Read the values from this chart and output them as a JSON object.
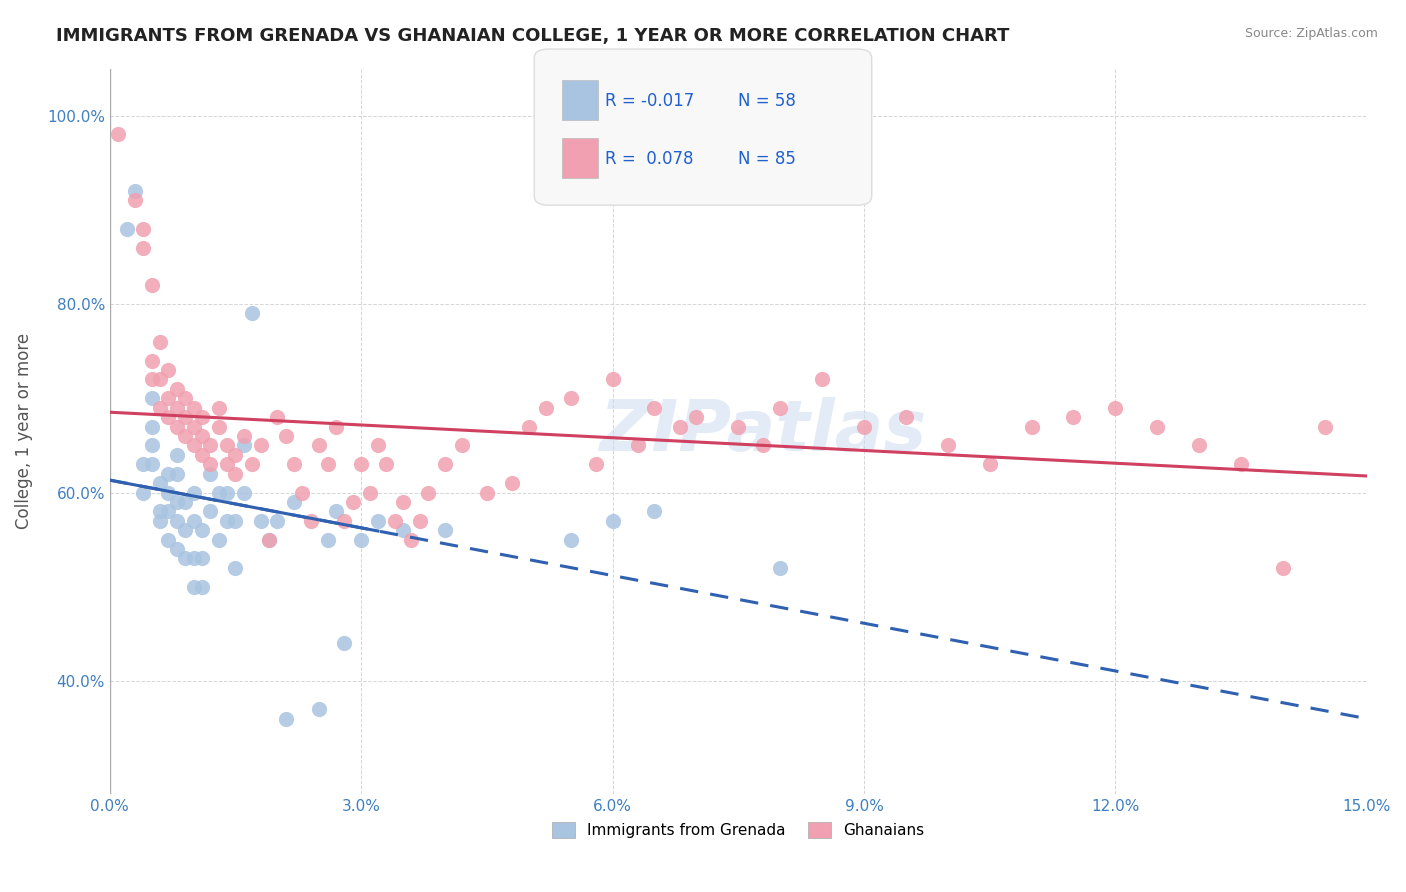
{
  "title": "IMMIGRANTS FROM GRENADA VS GHANAIAN COLLEGE, 1 YEAR OR MORE CORRELATION CHART",
  "source": "Source: ZipAtlas.com",
  "xlabel_ticks": [
    "0.0%",
    "3.0%",
    "6.0%",
    "9.0%",
    "12.0%",
    "15.0%"
  ],
  "xlabel_vals": [
    0.0,
    0.03,
    0.06,
    0.09,
    0.12,
    0.15
  ],
  "ylabel_ticks": [
    "40.0%",
    "60.0%",
    "80.0%",
    "100.0%"
  ],
  "ylabel_vals": [
    0.4,
    0.6,
    0.8,
    1.0
  ],
  "xlim": [
    0.0,
    0.15
  ],
  "ylim": [
    0.28,
    1.05
  ],
  "ylabel": "College, 1 year or more",
  "legend_blue_label": "Immigrants from Grenada",
  "legend_pink_label": "Ghanaians",
  "R_blue": -0.017,
  "N_blue": 58,
  "R_pink": 0.078,
  "N_pink": 85,
  "blue_color": "#a8c4e0",
  "pink_color": "#f0a0b0",
  "blue_line_color": "#3060b0",
  "pink_line_color": "#d04060",
  "watermark": "ZIPatlas",
  "blue_scatter_x": [
    0.002,
    0.003,
    0.004,
    0.004,
    0.005,
    0.005,
    0.005,
    0.005,
    0.006,
    0.006,
    0.006,
    0.007,
    0.007,
    0.007,
    0.007,
    0.008,
    0.008,
    0.008,
    0.008,
    0.008,
    0.009,
    0.009,
    0.009,
    0.01,
    0.01,
    0.01,
    0.01,
    0.011,
    0.011,
    0.011,
    0.012,
    0.012,
    0.013,
    0.013,
    0.014,
    0.014,
    0.015,
    0.015,
    0.016,
    0.016,
    0.017,
    0.018,
    0.019,
    0.02,
    0.021,
    0.022,
    0.025,
    0.026,
    0.027,
    0.028,
    0.03,
    0.032,
    0.035,
    0.04,
    0.055,
    0.06,
    0.065,
    0.08
  ],
  "blue_scatter_y": [
    0.88,
    0.92,
    0.6,
    0.63,
    0.63,
    0.65,
    0.67,
    0.7,
    0.57,
    0.58,
    0.61,
    0.55,
    0.58,
    0.6,
    0.62,
    0.54,
    0.57,
    0.59,
    0.62,
    0.64,
    0.53,
    0.56,
    0.59,
    0.5,
    0.53,
    0.57,
    0.6,
    0.5,
    0.53,
    0.56,
    0.58,
    0.62,
    0.55,
    0.6,
    0.57,
    0.6,
    0.52,
    0.57,
    0.6,
    0.65,
    0.79,
    0.57,
    0.55,
    0.57,
    0.36,
    0.59,
    0.37,
    0.55,
    0.58,
    0.44,
    0.55,
    0.57,
    0.56,
    0.56,
    0.55,
    0.57,
    0.58,
    0.52
  ],
  "pink_scatter_x": [
    0.001,
    0.003,
    0.004,
    0.004,
    0.005,
    0.005,
    0.005,
    0.006,
    0.006,
    0.006,
    0.007,
    0.007,
    0.007,
    0.008,
    0.008,
    0.008,
    0.009,
    0.009,
    0.009,
    0.01,
    0.01,
    0.01,
    0.011,
    0.011,
    0.011,
    0.012,
    0.012,
    0.013,
    0.013,
    0.014,
    0.014,
    0.015,
    0.015,
    0.016,
    0.017,
    0.018,
    0.019,
    0.02,
    0.021,
    0.022,
    0.023,
    0.024,
    0.025,
    0.026,
    0.027,
    0.028,
    0.029,
    0.03,
    0.031,
    0.032,
    0.033,
    0.034,
    0.035,
    0.036,
    0.037,
    0.038,
    0.04,
    0.042,
    0.045,
    0.048,
    0.05,
    0.052,
    0.055,
    0.058,
    0.06,
    0.063,
    0.065,
    0.068,
    0.07,
    0.075,
    0.078,
    0.08,
    0.085,
    0.09,
    0.095,
    0.1,
    0.105,
    0.11,
    0.115,
    0.12,
    0.125,
    0.13,
    0.135,
    0.14,
    0.145
  ],
  "pink_scatter_y": [
    0.98,
    0.91,
    0.86,
    0.88,
    0.72,
    0.74,
    0.82,
    0.69,
    0.72,
    0.76,
    0.68,
    0.7,
    0.73,
    0.67,
    0.69,
    0.71,
    0.66,
    0.68,
    0.7,
    0.65,
    0.67,
    0.69,
    0.64,
    0.66,
    0.68,
    0.63,
    0.65,
    0.67,
    0.69,
    0.63,
    0.65,
    0.62,
    0.64,
    0.66,
    0.63,
    0.65,
    0.55,
    0.68,
    0.66,
    0.63,
    0.6,
    0.57,
    0.65,
    0.63,
    0.67,
    0.57,
    0.59,
    0.63,
    0.6,
    0.65,
    0.63,
    0.57,
    0.59,
    0.55,
    0.57,
    0.6,
    0.63,
    0.65,
    0.6,
    0.61,
    0.67,
    0.69,
    0.7,
    0.63,
    0.72,
    0.65,
    0.69,
    0.67,
    0.68,
    0.67,
    0.65,
    0.69,
    0.72,
    0.67,
    0.68,
    0.65,
    0.63,
    0.67,
    0.68,
    0.69,
    0.67,
    0.65,
    0.63,
    0.52,
    0.67
  ]
}
